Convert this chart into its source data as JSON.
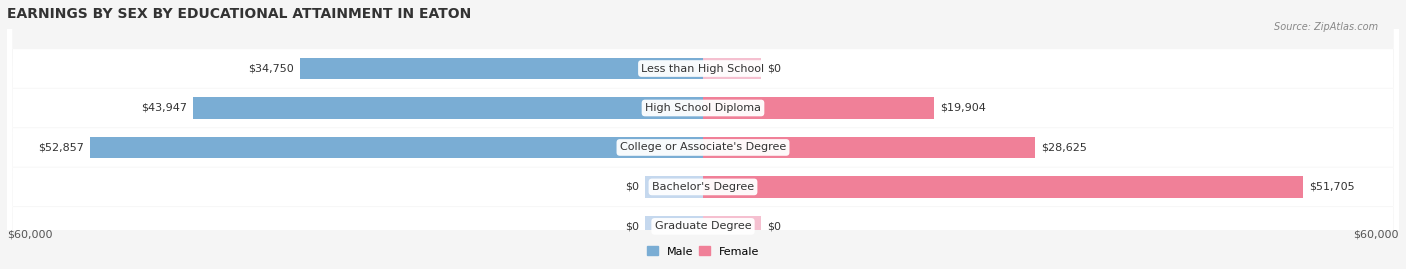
{
  "title": "EARNINGS BY SEX BY EDUCATIONAL ATTAINMENT IN EATON",
  "source": "Source: ZipAtlas.com",
  "categories": [
    "Less than High School",
    "High School Diploma",
    "College or Associate's Degree",
    "Bachelor's Degree",
    "Graduate Degree"
  ],
  "male_values": [
    34750,
    43947,
    52857,
    0,
    0
  ],
  "female_values": [
    0,
    19904,
    28625,
    51705,
    0
  ],
  "male_color": "#7aadd4",
  "female_color": "#f08098",
  "male_label_color": "#5588bb",
  "female_label_color": "#e06080",
  "male_light_color": "#c5d8ee",
  "female_light_color": "#f5c0d0",
  "axis_max": 60000,
  "background_color": "#f0f0f0",
  "row_bg_color": "#e8e8e8",
  "title_fontsize": 10,
  "label_fontsize": 8,
  "value_fontsize": 8,
  "axis_label_fontsize": 8,
  "xlabel_left": "$60,000",
  "xlabel_right": "$60,000",
  "male_legend": "Male",
  "female_legend": "Female"
}
